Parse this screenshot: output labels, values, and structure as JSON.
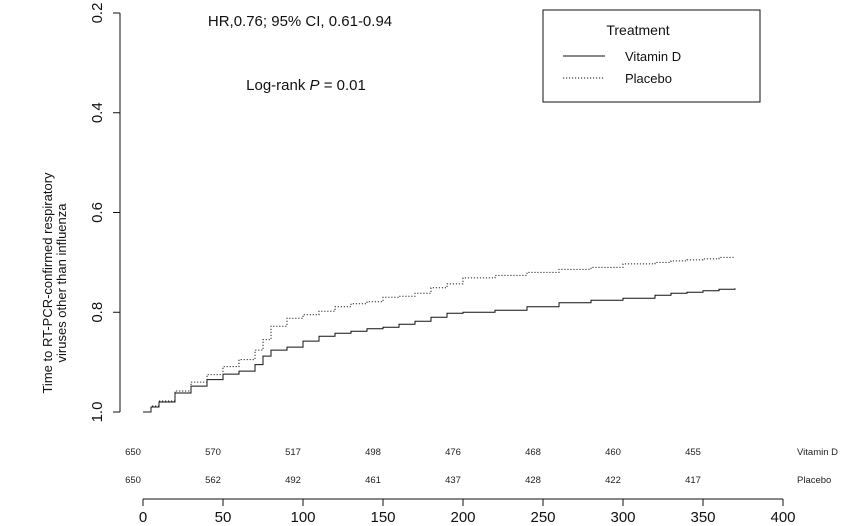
{
  "chart_data": {
    "type": "line",
    "chart_kind": "kaplan-meier",
    "title": "",
    "ylabel": [
      "Time to RT-PCR-confirmed respiratory",
      "viruses other than influenza"
    ],
    "xlabel": "",
    "xlim": [
      0,
      400
    ],
    "ylim_reversed": [
      1.0,
      0.2
    ],
    "x_ticks": [
      "0",
      "50",
      "100",
      "150",
      "200",
      "250",
      "300",
      "350",
      "400"
    ],
    "y_ticks": [
      "1.0",
      "0.8",
      "0.6",
      "0.4",
      "0.2"
    ],
    "annotations": {
      "hr": "HR,0.76; 95% CI, 0.61-0.94",
      "logrank_prefix": "Log-rank ",
      "logrank_p": "P",
      "logrank_suffix": " = 0.01"
    },
    "legend": {
      "title": "Treatment",
      "position": "top-right",
      "items": [
        {
          "label": "Vitamin D",
          "style": "solid"
        },
        {
          "label": "Placebo",
          "style": "dotted"
        }
      ]
    },
    "series": [
      {
        "name": "Vitamin D",
        "style": "solid",
        "x": [
          0,
          5,
          10,
          20,
          30,
          40,
          50,
          60,
          70,
          75,
          80,
          90,
          100,
          110,
          120,
          130,
          140,
          150,
          160,
          170,
          180,
          190,
          200,
          220,
          240,
          260,
          280,
          300,
          320,
          330,
          340,
          350,
          360,
          370
        ],
        "y": [
          1.0,
          0.99,
          0.98,
          0.962,
          0.948,
          0.935,
          0.924,
          0.918,
          0.905,
          0.888,
          0.876,
          0.87,
          0.858,
          0.848,
          0.842,
          0.838,
          0.833,
          0.83,
          0.824,
          0.818,
          0.81,
          0.802,
          0.8,
          0.796,
          0.789,
          0.781,
          0.776,
          0.772,
          0.766,
          0.762,
          0.76,
          0.757,
          0.754,
          0.752
        ]
      },
      {
        "name": "Placebo",
        "style": "dotted",
        "x": [
          0,
          5,
          10,
          20,
          30,
          40,
          50,
          60,
          70,
          75,
          80,
          90,
          100,
          110,
          120,
          130,
          140,
          150,
          160,
          170,
          180,
          190,
          200,
          220,
          240,
          260,
          280,
          300,
          320,
          330,
          340,
          350,
          360,
          370
        ],
        "y": [
          1.0,
          0.988,
          0.978,
          0.958,
          0.94,
          0.925,
          0.909,
          0.895,
          0.876,
          0.855,
          0.828,
          0.812,
          0.805,
          0.798,
          0.789,
          0.783,
          0.779,
          0.77,
          0.768,
          0.762,
          0.751,
          0.743,
          0.731,
          0.726,
          0.72,
          0.714,
          0.71,
          0.703,
          0.7,
          0.697,
          0.695,
          0.693,
          0.69,
          0.69
        ]
      }
    ],
    "risk_table": {
      "times": [
        0,
        50,
        100,
        150,
        200,
        250,
        300,
        350
      ],
      "rows": [
        {
          "label": "Vitamin D",
          "values": [
            "650",
            "570",
            "517",
            "498",
            "476",
            "468",
            "460",
            "455"
          ]
        },
        {
          "label": "Placebo",
          "values": [
            "650",
            "562",
            "492",
            "461",
            "437",
            "428",
            "422",
            "417"
          ]
        }
      ]
    }
  }
}
